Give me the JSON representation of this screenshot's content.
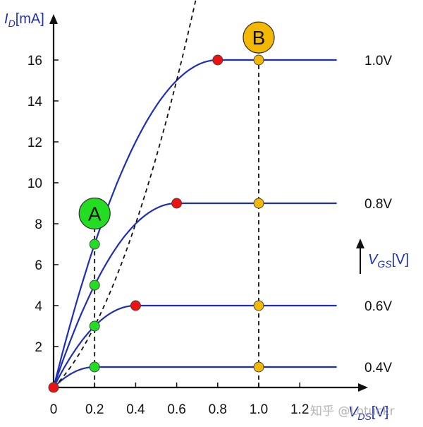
{
  "chart_data": {
    "type": "line",
    "y_title": {
      "sym": "I",
      "sub": "D",
      "unit": "[mA]"
    },
    "x_title": {
      "sym": "V",
      "sub": "DS",
      "unit": "[V]"
    },
    "vgs_arrow_label": {
      "sym": "V",
      "sub": "GS",
      "unit": "[V]"
    },
    "xlim": [
      0,
      1.4
    ],
    "ylim": [
      0,
      17
    ],
    "x_ticks": [
      {
        "value": 0,
        "label": "0"
      },
      {
        "value": 0.2,
        "label": "0.2"
      },
      {
        "value": 0.4,
        "label": "0.4"
      },
      {
        "value": 0.6,
        "label": "0.6"
      },
      {
        "value": 0.8,
        "label": "0.8"
      },
      {
        "value": 1.0,
        "label": "1.0"
      },
      {
        "value": 1.2,
        "label": "1.2"
      }
    ],
    "y_ticks": [
      {
        "value": 2,
        "label": "2"
      },
      {
        "value": 4,
        "label": "4"
      },
      {
        "value": 6,
        "label": "6"
      },
      {
        "value": 8,
        "label": "8"
      },
      {
        "value": 10,
        "label": "10"
      },
      {
        "value": 12,
        "label": "12"
      },
      {
        "value": 14,
        "label": "14"
      },
      {
        "value": 16,
        "label": "16"
      }
    ],
    "series": [
      {
        "name": "0.4V",
        "vgs": 0.4,
        "sat_vds": 0.2,
        "sat_id": 1
      },
      {
        "name": "0.6V",
        "vgs": 0.6,
        "sat_vds": 0.4,
        "sat_id": 4
      },
      {
        "name": "0.8V",
        "vgs": 0.8,
        "sat_vds": 0.6,
        "sat_id": 9
      },
      {
        "name": "1.0V",
        "vgs": 1.0,
        "sat_vds": 0.8,
        "sat_id": 16
      }
    ],
    "curve_end_vds": 1.38,
    "boundary_points": [
      {
        "x": 0,
        "y": 0
      },
      {
        "x": 0.4,
        "y": 4
      },
      {
        "x": 0.6,
        "y": 9
      },
      {
        "x": 0.8,
        "y": 16
      }
    ],
    "operating_points_A": [
      {
        "x": 0.2,
        "y": 1
      },
      {
        "x": 0.2,
        "y": 3
      },
      {
        "x": 0.2,
        "y": 5
      },
      {
        "x": 0.2,
        "y": 7
      }
    ],
    "operating_points_B": [
      {
        "x": 1.0,
        "y": 1
      },
      {
        "x": 1.0,
        "y": 4
      },
      {
        "x": 1.0,
        "y": 9
      },
      {
        "x": 1.0,
        "y": 16
      }
    ],
    "markers": [
      {
        "label": "A",
        "x": 0.2,
        "y": 8.5,
        "color": "#22dd22"
      },
      {
        "label": "B",
        "x": 1.0,
        "y": 17.1,
        "color": "#f5b800"
      }
    ],
    "colors": {
      "curve": "#1f2fb4",
      "axis": "#111111",
      "boundary_point": "#ee1111",
      "point_A": "#22dd22",
      "point_B": "#f5b800",
      "dashed": "#111111"
    }
  },
  "watermark_text": "知乎 @Lotuckr"
}
